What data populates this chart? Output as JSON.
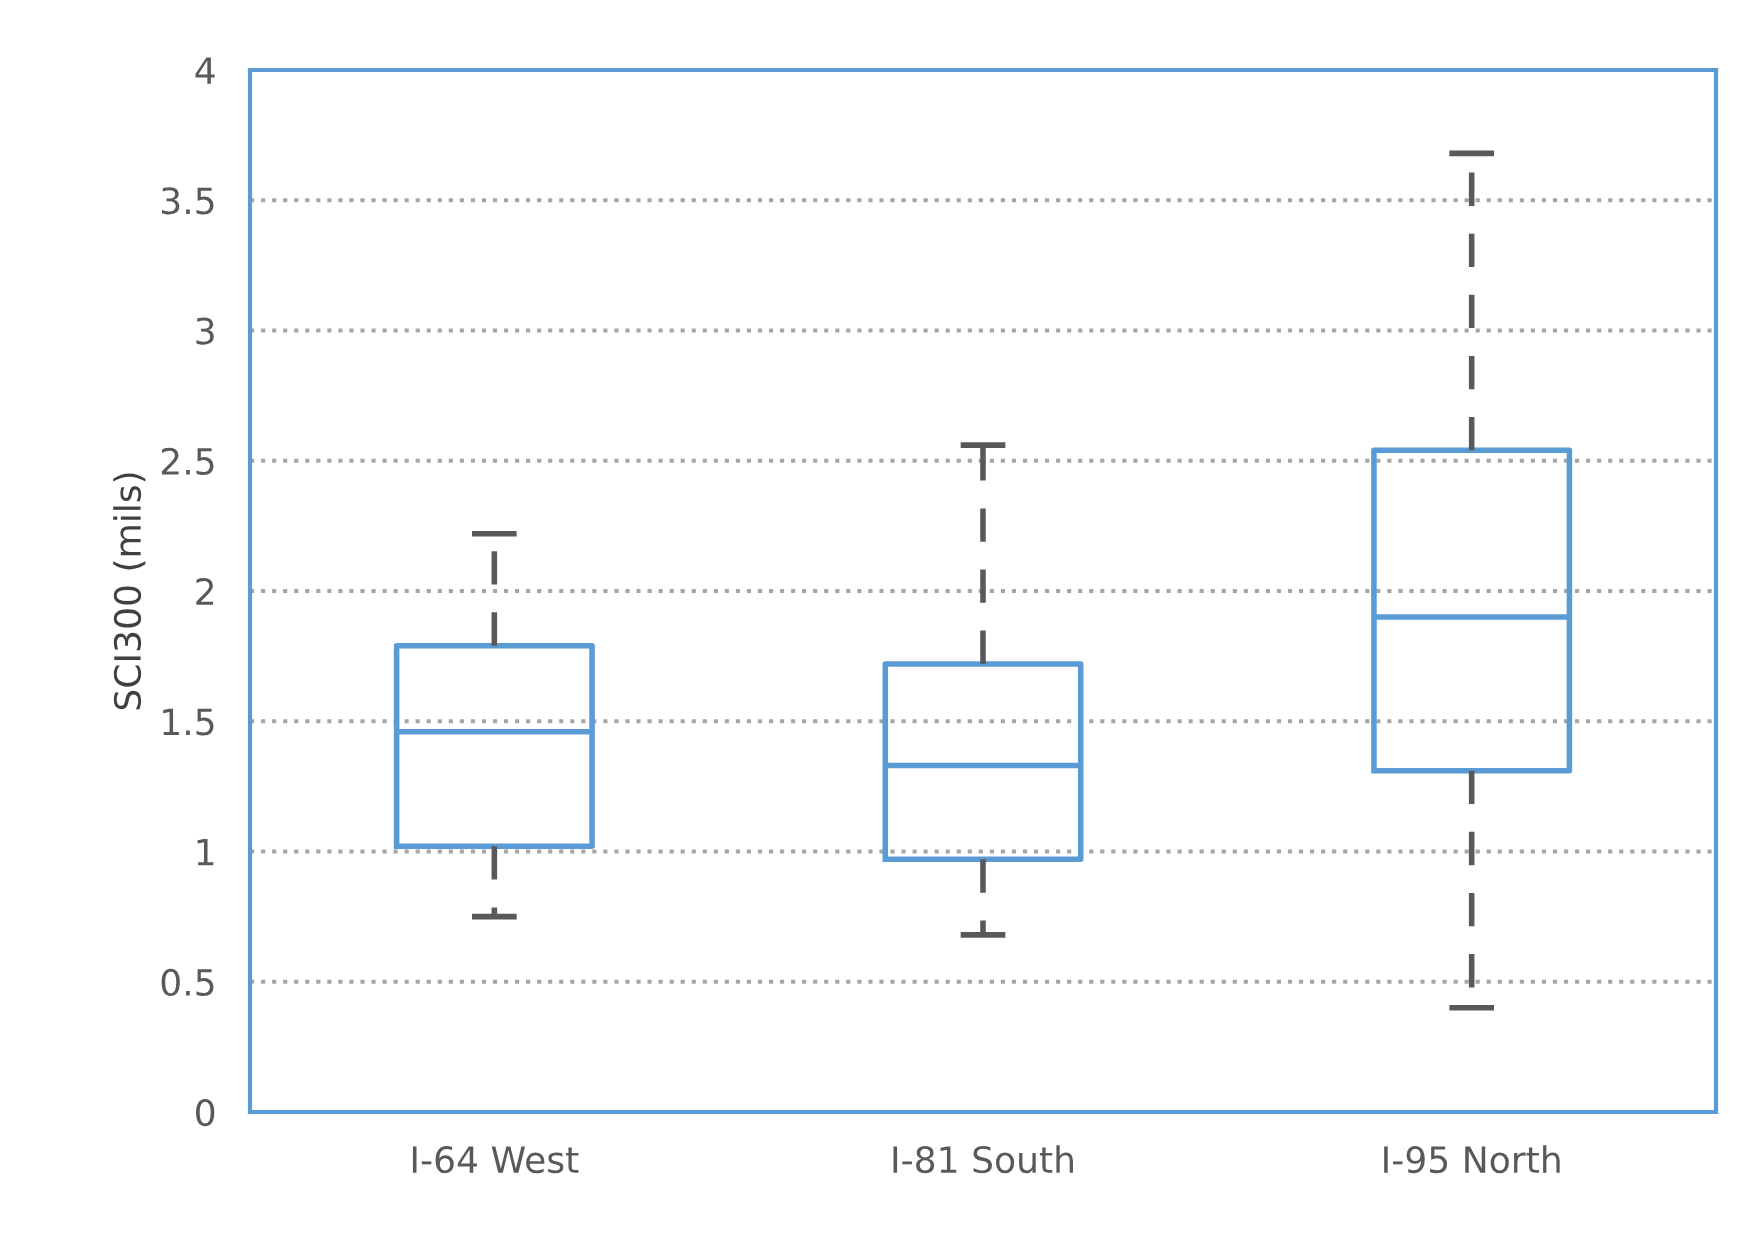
{
  "chart_data": {
    "type": "box",
    "ylabel": "SCI300 (mils)",
    "categories": [
      "I-64 West",
      "I-81 South",
      "I-95 North"
    ],
    "series": [
      {
        "color": "#5b9bd5",
        "boxes": [
          {
            "low": 0.75,
            "q1": 1.02,
            "median": 1.46,
            "q3": 1.79,
            "high": 2.22
          },
          {
            "low": 0.68,
            "q1": 0.97,
            "median": 1.33,
            "q3": 1.72,
            "high": 2.56
          },
          {
            "low": 0.4,
            "q1": 1.31,
            "median": 1.9,
            "q3": 2.54,
            "high": 3.68
          }
        ]
      }
    ],
    "ylim": [
      0,
      4
    ],
    "yticks": [
      0,
      0.5,
      1,
      1.5,
      2,
      2.5,
      3,
      3.5,
      4
    ],
    "grid": "y",
    "line_style": "dashed"
  }
}
